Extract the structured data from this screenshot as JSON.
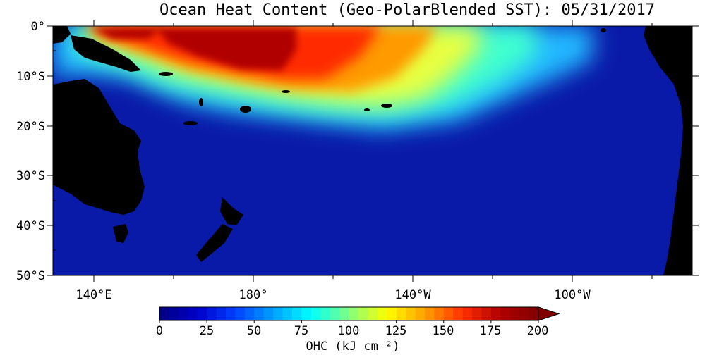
{
  "title": "Ocean Heat Content (Geo-PolarBlended SST): 05/31/2017",
  "latitude_labels": [
    "0°",
    "10°S",
    "20°S",
    "30°S",
    "40°S",
    "50°S"
  ],
  "longitude_labels": [
    "140°E",
    "180°",
    "140°W",
    "100°W"
  ],
  "colorbar": {
    "min": 0,
    "max": 200,
    "tick_labels": [
      "0",
      "25",
      "50",
      "75",
      "100",
      "125",
      "150",
      "175",
      "200"
    ],
    "unit_label": "OHC (kJ cm⁻²)",
    "extends": "max"
  },
  "colors": {
    "land": "#000000",
    "ocean_background": "#0a1aa8",
    "scale": [
      "#000080",
      "#0000c8",
      "#0040ff",
      "#00a0ff",
      "#00ffff",
      "#80ff80",
      "#ffff00",
      "#ffa000",
      "#ff3000",
      "#b00000",
      "#800000"
    ]
  }
}
